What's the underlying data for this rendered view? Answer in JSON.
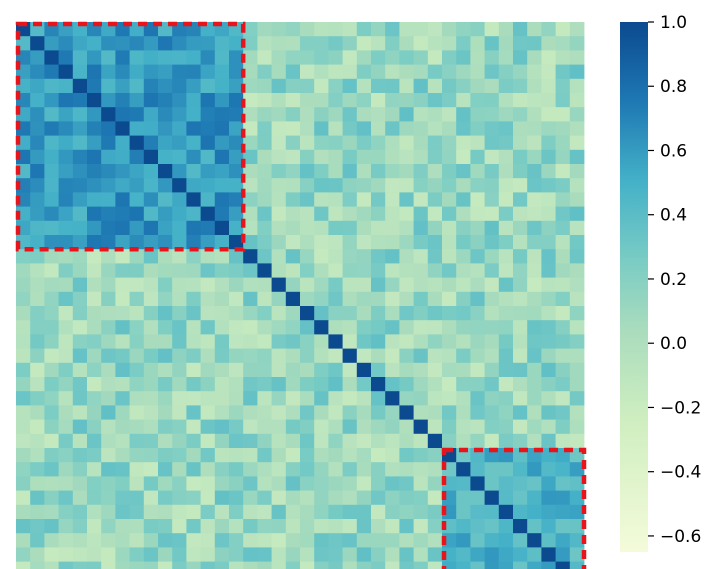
{
  "chart_data": {
    "type": "heatmap",
    "title": "",
    "xlabel": "",
    "ylabel": "",
    "n_rows": 40,
    "n_cols": 40,
    "colormap": "YlGnBu",
    "colorbar": {
      "range": [
        -0.65,
        1.0
      ],
      "ticks": [
        1.0,
        0.8,
        0.6,
        0.4,
        0.2,
        0.0,
        -0.2,
        -0.4,
        -0.6
      ],
      "tick_labels": [
        "1.0",
        "0.8",
        "0.6",
        "0.4",
        "0.2",
        "0.0",
        "−0.2",
        "−0.4",
        "−0.6"
      ]
    },
    "clusters": [
      {
        "start": 0,
        "end": 15,
        "mean_corr": 0.6
      },
      {
        "start": 30,
        "end": 39,
        "mean_corr": 0.45
      }
    ],
    "diagonal_value": 1.0,
    "background_corr_mean": 0.1,
    "highlight": {
      "color": "#e8141b",
      "style": "dashed",
      "count": 2
    }
  }
}
